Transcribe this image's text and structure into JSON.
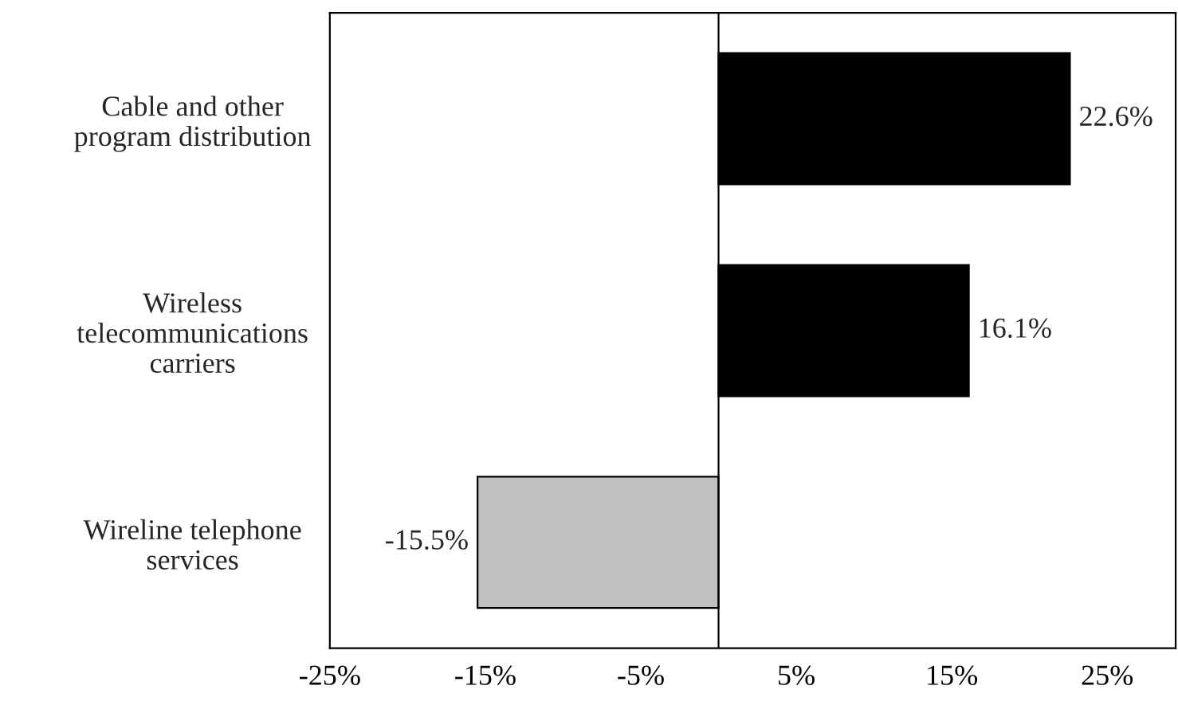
{
  "chart_data": {
    "type": "bar",
    "orientation": "horizontal",
    "categories": [
      "Cable and other\nprogram distribution",
      "Wireless\ntelecommunications\ncarriers",
      "Wireline telephone\nservices"
    ],
    "values": [
      22.6,
      16.1,
      -15.5
    ],
    "colors": [
      "#000000",
      "#000000",
      "#c0c0c0"
    ],
    "value_labels": [
      "22.6%",
      "16.1%",
      "-15.5%"
    ],
    "xlim": [
      -25,
      29.4
    ],
    "xticks": [
      {
        "value": -25,
        "label": "-25%"
      },
      {
        "value": -15,
        "label": "-15%"
      },
      {
        "value": -5,
        "label": "-5%"
      },
      {
        "value": 5,
        "label": "5%"
      },
      {
        "value": 15,
        "label": "15%"
      },
      {
        "value": 25,
        "label": "25%"
      }
    ],
    "grid": false,
    "legend": false
  }
}
